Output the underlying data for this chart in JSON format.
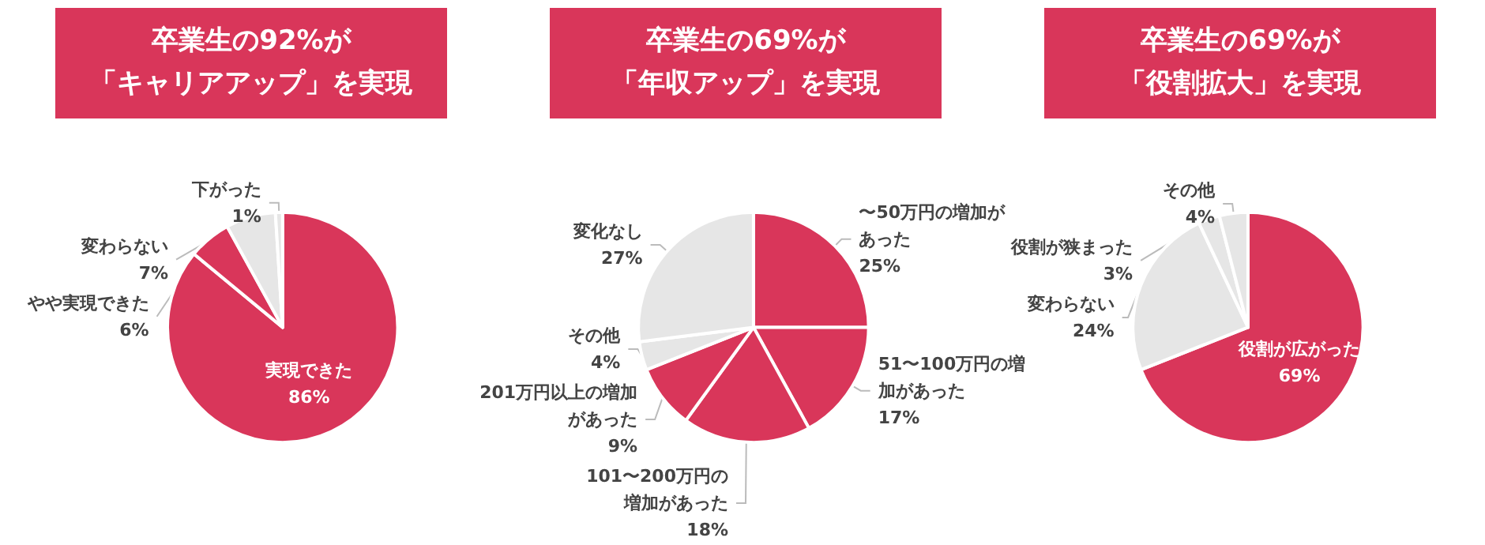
{
  "chart_data": [
    {
      "type": "pie",
      "title": "卒業生の92%が「キャリアアップ」を実現",
      "categories": [
        "実現できた",
        "やや実現できた",
        "変わらない",
        "下がった"
      ],
      "values": [
        86,
        6,
        7,
        1
      ],
      "value_labels": [
        "86%",
        "6%",
        "7%",
        "1%"
      ],
      "colors": [
        "#d9365a",
        "#d9365a",
        "#e6e6e6",
        "#e6e6e6"
      ],
      "legend": false
    },
    {
      "type": "pie",
      "title": "卒業生の69%が「年収アップ」を実現",
      "categories": [
        "〜50万円の増加があった",
        "51〜100万円の増加があった",
        "101〜200万円の増加があった",
        "201万円以上の増加があった",
        "その他",
        "変化なし"
      ],
      "values": [
        25,
        17,
        18,
        9,
        4,
        27
      ],
      "value_labels": [
        "25%",
        "17%",
        "18%",
        "9%",
        "4%",
        "27%"
      ],
      "colors": [
        "#d9365a",
        "#d9365a",
        "#d9365a",
        "#d9365a",
        "#e6e6e6",
        "#e6e6e6"
      ],
      "legend": false
    },
    {
      "type": "pie",
      "title": "卒業生の69%が「役割拡大」を実現",
      "categories": [
        "役割が広がった",
        "変わらない",
        "役割が狭まった",
        "その他"
      ],
      "values": [
        69,
        24,
        3,
        4
      ],
      "value_labels": [
        "69%",
        "24%",
        "3%",
        "4%"
      ],
      "colors": [
        "#d9365a",
        "#e6e6e6",
        "#e6e6e6",
        "#e6e6e6"
      ],
      "legend": false
    }
  ]
}
